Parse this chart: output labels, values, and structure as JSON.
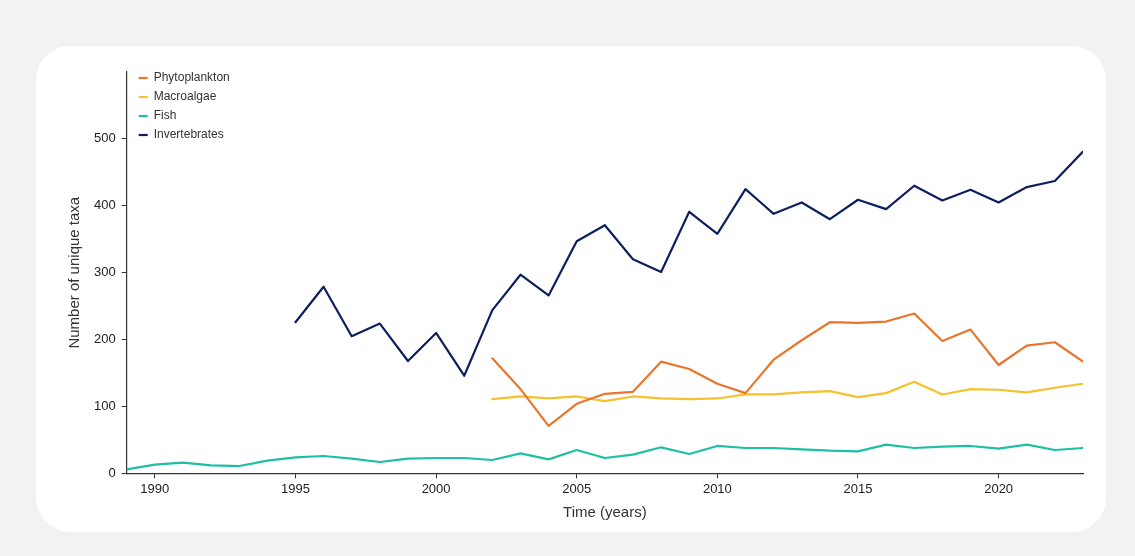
{
  "chart_data": {
    "type": "line",
    "xlabel": "Time (years)",
    "ylabel": "Number of unique taxa",
    "xlim": [
      1989,
      2023
    ],
    "xticks": [
      1990,
      1995,
      2000,
      2005,
      2010,
      2015,
      2020
    ],
    "ylim": [
      0,
      600
    ],
    "yticks": [
      0,
      100,
      200,
      300,
      400,
      500
    ],
    "grid": false,
    "legend": "top left",
    "marker": "none",
    "line_style": "solid",
    "series": [
      {
        "name": "Phytoplankton",
        "color": "#e8762c",
        "x": [
          2002,
          2003,
          2004,
          2005,
          2006,
          2007,
          2008,
          2009,
          2010,
          2011,
          2012,
          2013,
          2014,
          2015,
          2016,
          2017,
          2018,
          2019,
          2020,
          2021,
          2022,
          2023
        ],
        "values": [
          172,
          126,
          71,
          104,
          119,
          122,
          167,
          156,
          134,
          120,
          170,
          199,
          226,
          225,
          227,
          239,
          198,
          215,
          162,
          191,
          196,
          167
        ]
      },
      {
        "name": "Macroalgae",
        "color": "#f5c12e",
        "x": [
          2002,
          2003,
          2004,
          2005,
          2006,
          2007,
          2008,
          2009,
          2010,
          2011,
          2012,
          2013,
          2014,
          2015,
          2016,
          2017,
          2018,
          2019,
          2020,
          2021,
          2022,
          2023
        ],
        "values": [
          111,
          115,
          112,
          115,
          108,
          115,
          112,
          111,
          112,
          118,
          118,
          121,
          123,
          114,
          120,
          137,
          118,
          126,
          125,
          121,
          128,
          134
        ]
      },
      {
        "name": "Fish",
        "color": "#1fbfa6",
        "x": [
          1989,
          1990,
          1991,
          1992,
          1993,
          1994,
          1995,
          1996,
          1997,
          1998,
          1999,
          2000,
          2001,
          2002,
          2003,
          2004,
          2005,
          2006,
          2007,
          2008,
          2009,
          2010,
          2011,
          2012,
          2013,
          2014,
          2015,
          2016,
          2017,
          2018,
          2019,
          2020,
          2021,
          2022,
          2023
        ],
        "values": [
          6,
          13,
          16,
          12,
          11,
          19,
          24,
          26,
          22,
          17,
          22,
          23,
          23,
          20,
          30,
          21,
          35,
          23,
          28,
          39,
          29,
          41,
          38,
          38,
          36,
          34,
          33,
          43,
          38,
          40,
          41,
          37,
          43,
          35,
          38
        ]
      },
      {
        "name": "Invertebrates",
        "color": "#0d1f5c",
        "x": [
          1995,
          1996,
          1997,
          1998,
          1999,
          2000,
          2001,
          2002,
          2003,
          2004,
          2005,
          2006,
          2007,
          2008,
          2009,
          2010,
          2011,
          2012,
          2013,
          2014,
          2015,
          2016,
          2017,
          2018,
          2019,
          2020,
          2021,
          2022,
          2023
        ],
        "values": [
          226,
          279,
          205,
          224,
          168,
          210,
          146,
          244,
          297,
          266,
          347,
          371,
          320,
          301,
          391,
          358,
          425,
          388,
          405,
          380,
          409,
          395,
          430,
          408,
          424,
          405,
          428,
          437,
          481
        ]
      }
    ]
  }
}
